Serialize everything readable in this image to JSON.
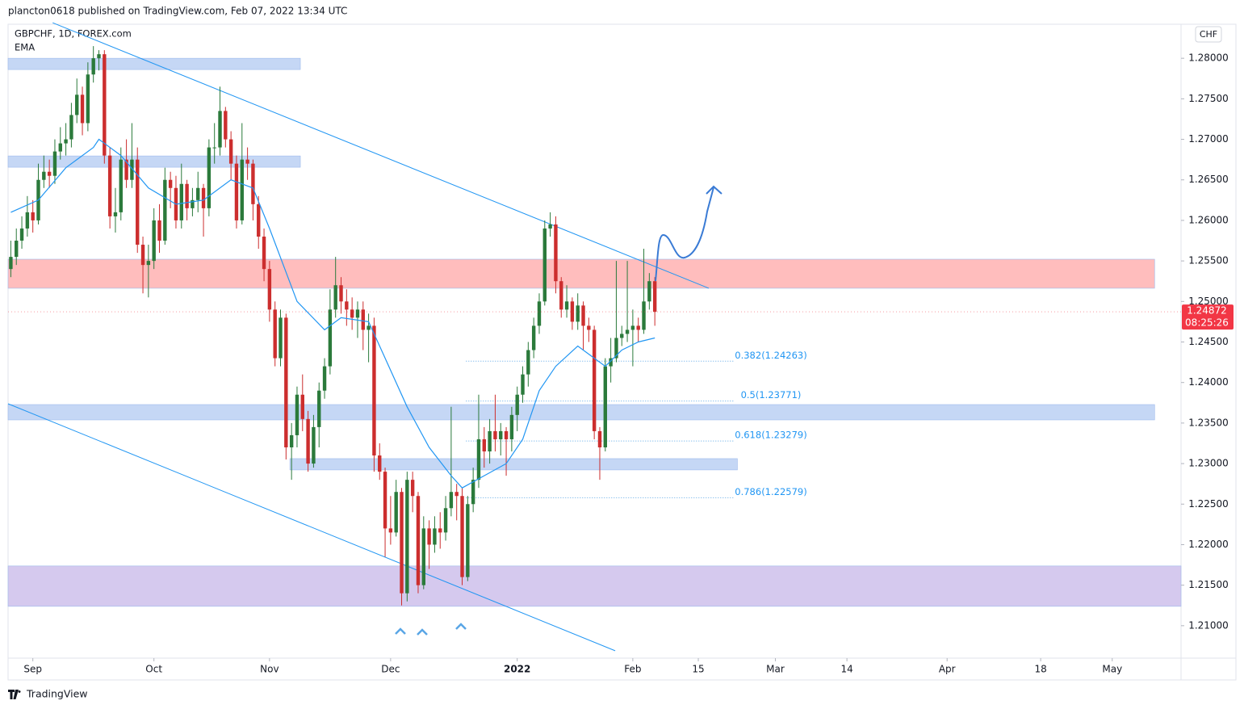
{
  "header": {
    "byline": "plancton0618 published on TradingView.com, Feb 07, 2022 13:34 UTC",
    "symbol": "GBPCHF, 1D, FOREX.com",
    "indicator": "EMA",
    "currency": "CHF",
    "brand": "TradingView"
  },
  "chart_data": {
    "type": "candlestick",
    "up_color": "#2b7a3b",
    "down_color": "#cc2e2e",
    "ema_color": "#2196f3",
    "xlim": [
      -0.5,
      212.6
    ],
    "ylim": [
      1.206,
      1.2842
    ],
    "xticks": [
      {
        "value": 4,
        "label": "Sep"
      },
      {
        "value": 26,
        "label": "Oct"
      },
      {
        "value": 47,
        "label": "Nov"
      },
      {
        "value": 69,
        "label": "Dec"
      },
      {
        "value": 92,
        "label": "2022"
      },
      {
        "value": 113,
        "label": "Feb"
      },
      {
        "value": 124.9,
        "label": "15"
      },
      {
        "value": 138.9,
        "label": "Mar"
      },
      {
        "value": 151.9,
        "label": "14"
      },
      {
        "value": 170.1,
        "label": "Apr"
      },
      {
        "value": 187.1,
        "label": "18"
      },
      {
        "value": 200.1,
        "label": "May"
      }
    ],
    "yticks": [
      {
        "value": 1.21,
        "label": "1.21000"
      },
      {
        "value": 1.215,
        "label": "1.21500"
      },
      {
        "value": 1.22,
        "label": "1.22000"
      },
      {
        "value": 1.225,
        "label": "1.22500"
      },
      {
        "value": 1.23,
        "label": "1.23000"
      },
      {
        "value": 1.235,
        "label": "1.23500"
      },
      {
        "value": 1.24,
        "label": "1.24000"
      },
      {
        "value": 1.245,
        "label": "1.24500"
      },
      {
        "value": 1.25,
        "label": "1.25000"
      },
      {
        "value": 1.255,
        "label": "1.25500"
      },
      {
        "value": 1.26,
        "label": "1.26000"
      },
      {
        "value": 1.265,
        "label": "1.26500"
      },
      {
        "value": 1.27,
        "label": "1.27000"
      },
      {
        "value": 1.275,
        "label": "1.27500"
      },
      {
        "value": 1.28,
        "label": "1.28000"
      }
    ],
    "ohlc": [
      [
        1.254,
        1.2575,
        1.253,
        1.2555
      ],
      [
        1.2555,
        1.259,
        1.2545,
        1.2575
      ],
      [
        1.2575,
        1.2605,
        1.2565,
        1.259
      ],
      [
        1.259,
        1.263,
        1.258,
        1.261
      ],
      [
        1.261,
        1.2625,
        1.2585,
        1.26
      ],
      [
        1.26,
        1.267,
        1.2595,
        1.265
      ],
      [
        1.265,
        1.268,
        1.264,
        1.266
      ],
      [
        1.266,
        1.2675,
        1.264,
        1.2655
      ],
      [
        1.2655,
        1.27,
        1.2645,
        1.2685
      ],
      [
        1.2685,
        1.2715,
        1.2675,
        1.2695
      ],
      [
        1.2695,
        1.272,
        1.268,
        1.27
      ],
      [
        1.27,
        1.2745,
        1.269,
        1.273
      ],
      [
        1.273,
        1.2775,
        1.272,
        1.2755
      ],
      [
        1.2755,
        1.2765,
        1.2705,
        1.272
      ],
      [
        1.272,
        1.2795,
        1.271,
        1.278
      ],
      [
        1.278,
        1.2815,
        1.277,
        1.28
      ],
      [
        1.28,
        1.281,
        1.2785,
        1.2805
      ],
      [
        1.2805,
        1.281,
        1.267,
        1.268
      ],
      [
        1.268,
        1.269,
        1.259,
        1.2605
      ],
      [
        1.2605,
        1.264,
        1.2585,
        1.261
      ],
      [
        1.261,
        1.269,
        1.26,
        1.2675
      ],
      [
        1.2675,
        1.27,
        1.264,
        1.265
      ],
      [
        1.265,
        1.272,
        1.264,
        1.2675
      ],
      [
        1.2675,
        1.269,
        1.256,
        1.257
      ],
      [
        1.257,
        1.258,
        1.251,
        1.2545
      ],
      [
        1.2545,
        1.257,
        1.2505,
        1.255
      ],
      [
        1.255,
        1.2615,
        1.254,
        1.26
      ],
      [
        1.26,
        1.262,
        1.256,
        1.2575
      ],
      [
        1.2575,
        1.2665,
        1.257,
        1.265
      ],
      [
        1.265,
        1.266,
        1.2615,
        1.264
      ],
      [
        1.264,
        1.2655,
        1.259,
        1.26
      ],
      [
        1.26,
        1.267,
        1.259,
        1.2645
      ],
      [
        1.2645,
        1.265,
        1.26,
        1.2615
      ],
      [
        1.2615,
        1.264,
        1.2605,
        1.2625
      ],
      [
        1.2625,
        1.266,
        1.261,
        1.264
      ],
      [
        1.264,
        1.2645,
        1.258,
        1.2615
      ],
      [
        1.2615,
        1.27,
        1.2605,
        1.269
      ],
      [
        1.269,
        1.272,
        1.267,
        1.269
      ],
      [
        1.269,
        1.2765,
        1.268,
        1.2735
      ],
      [
        1.2735,
        1.274,
        1.269,
        1.27
      ],
      [
        1.27,
        1.271,
        1.265,
        1.267
      ],
      [
        1.267,
        1.268,
        1.259,
        1.26
      ],
      [
        1.26,
        1.272,
        1.2595,
        1.2675
      ],
      [
        1.2675,
        1.269,
        1.265,
        1.267
      ],
      [
        1.267,
        1.2675,
        1.26,
        1.262
      ],
      [
        1.262,
        1.263,
        1.2565,
        1.258
      ],
      [
        1.258,
        1.259,
        1.2525,
        1.254
      ],
      [
        1.254,
        1.255,
        1.2475,
        1.249
      ],
      [
        1.249,
        1.25,
        1.242,
        1.243
      ],
      [
        1.243,
        1.249,
        1.242,
        1.248
      ],
      [
        1.248,
        1.2485,
        1.2305,
        1.232
      ],
      [
        1.232,
        1.235,
        1.228,
        1.2335
      ],
      [
        1.2335,
        1.2395,
        1.232,
        1.2385
      ],
      [
        1.2385,
        1.241,
        1.234,
        1.2355
      ],
      [
        1.2355,
        1.2365,
        1.229,
        1.23
      ],
      [
        1.23,
        1.236,
        1.2295,
        1.2345
      ],
      [
        1.2345,
        1.24,
        1.232,
        1.239
      ],
      [
        1.239,
        1.243,
        1.238,
        1.242
      ],
      [
        1.242,
        1.2515,
        1.241,
        1.249
      ],
      [
        1.249,
        1.2555,
        1.248,
        1.252
      ],
      [
        1.252,
        1.253,
        1.2485,
        1.25
      ],
      [
        1.25,
        1.2515,
        1.247,
        1.249
      ],
      [
        1.249,
        1.2505,
        1.2465,
        1.248
      ],
      [
        1.248,
        1.25,
        1.2455,
        1.249
      ],
      [
        1.249,
        1.25,
        1.244,
        1.2465
      ],
      [
        1.2465,
        1.2485,
        1.2425,
        1.247
      ],
      [
        1.247,
        1.248,
        1.229,
        1.231
      ],
      [
        1.231,
        1.2325,
        1.228,
        1.229
      ],
      [
        1.229,
        1.2295,
        1.2185,
        1.222
      ],
      [
        1.222,
        1.226,
        1.22,
        1.2215
      ],
      [
        1.2215,
        1.228,
        1.221,
        1.2265
      ],
      [
        1.2265,
        1.227,
        1.2125,
        1.214
      ],
      [
        1.214,
        1.229,
        1.213,
        1.228
      ],
      [
        1.228,
        1.229,
        1.224,
        1.226
      ],
      [
        1.226,
        1.2265,
        1.214,
        1.215
      ],
      [
        1.215,
        1.2235,
        1.2145,
        1.222
      ],
      [
        1.222,
        1.223,
        1.217,
        1.22
      ],
      [
        1.22,
        1.2235,
        1.219,
        1.222
      ],
      [
        1.222,
        1.224,
        1.2195,
        1.2215
      ],
      [
        1.2215,
        1.226,
        1.2205,
        1.2245
      ],
      [
        1.2245,
        1.237,
        1.2235,
        1.2265
      ],
      [
        1.2265,
        1.2275,
        1.223,
        1.226
      ],
      [
        1.226,
        1.227,
        1.215,
        1.216
      ],
      [
        1.216,
        1.226,
        1.2155,
        1.225
      ],
      [
        1.225,
        1.2295,
        1.224,
        1.228
      ],
      [
        1.228,
        1.2385,
        1.227,
        1.233
      ],
      [
        1.233,
        1.2345,
        1.2295,
        1.2315
      ],
      [
        1.2315,
        1.2355,
        1.23,
        1.234
      ],
      [
        1.234,
        1.2385,
        1.2315,
        1.233
      ],
      [
        1.233,
        1.235,
        1.231,
        1.234
      ],
      [
        1.234,
        1.2345,
        1.2285,
        1.233
      ],
      [
        1.233,
        1.237,
        1.2315,
        1.236
      ],
      [
        1.236,
        1.2395,
        1.234,
        1.2385
      ],
      [
        1.2385,
        1.242,
        1.2375,
        1.241
      ],
      [
        1.241,
        1.245,
        1.2395,
        1.244
      ],
      [
        1.244,
        1.248,
        1.243,
        1.247
      ],
      [
        1.247,
        1.251,
        1.246,
        1.25
      ],
      [
        1.25,
        1.26,
        1.2495,
        1.259
      ],
      [
        1.259,
        1.261,
        1.258,
        1.2595
      ],
      [
        1.2595,
        1.2605,
        1.251,
        1.2525
      ],
      [
        1.2525,
        1.253,
        1.248,
        1.249
      ],
      [
        1.249,
        1.252,
        1.248,
        1.25
      ],
      [
        1.25,
        1.2505,
        1.2465,
        1.2475
      ],
      [
        1.2475,
        1.251,
        1.2465,
        1.2495
      ],
      [
        1.2495,
        1.25,
        1.244,
        1.247
      ],
      [
        1.247,
        1.248,
        1.245,
        1.2465
      ],
      [
        1.2465,
        1.247,
        1.233,
        1.234
      ],
      [
        1.234,
        1.2345,
        1.228,
        1.232
      ],
      [
        1.232,
        1.243,
        1.2315,
        1.242
      ],
      [
        1.242,
        1.2455,
        1.24,
        1.243
      ],
      [
        1.243,
        1.255,
        1.2425,
        1.2455
      ],
      [
        1.2455,
        1.247,
        1.2445,
        1.246
      ],
      [
        1.246,
        1.255,
        1.245,
        1.2465
      ],
      [
        1.2465,
        1.249,
        1.242,
        1.247
      ],
      [
        1.247,
        1.248,
        1.245,
        1.2465
      ],
      [
        1.2465,
        1.2565,
        1.246,
        1.25
      ],
      [
        1.25,
        1.2535,
        1.249,
        1.2525
      ],
      [
        1.2525,
        1.253,
        1.247,
        1.24872
      ]
    ],
    "ema": {
      "x": [
        0,
        5,
        10,
        15,
        16,
        20,
        25,
        30,
        35,
        40,
        44,
        47,
        52,
        57,
        60,
        65,
        68,
        72,
        76,
        80,
        82,
        86,
        90,
        93,
        96,
        99,
        103,
        106,
        108,
        111,
        114,
        117
      ],
      "values": [
        1.261,
        1.2625,
        1.2665,
        1.269,
        1.27,
        1.268,
        1.264,
        1.262,
        1.2625,
        1.265,
        1.264,
        1.259,
        1.25,
        1.2465,
        1.248,
        1.2475,
        1.243,
        1.237,
        1.232,
        1.2285,
        1.227,
        1.2285,
        1.23,
        1.233,
        1.239,
        1.242,
        1.2445,
        1.243,
        1.242,
        1.244,
        1.245,
        1.2455
      ]
    },
    "zones": [
      {
        "low": 1.27861,
        "high": 1.28,
        "from": -0.5,
        "to": 52.6,
        "color": "#c5d7f5"
      },
      {
        "low": 1.26656,
        "high": 1.26795,
        "from": -0.5,
        "to": 52.6,
        "color": "#c5d7f5"
      },
      {
        "low": 1.25163,
        "high": 1.25521,
        "from": -0.5,
        "to": 207.8,
        "color": "#ffbdbd"
      },
      {
        "low": 1.23539,
        "high": 1.23728,
        "from": -0.5,
        "to": 207.8,
        "color": "#c5d7f5"
      },
      {
        "low": 1.22922,
        "high": 1.23061,
        "from": 50.7,
        "to": 132,
        "color": "#c5d7f5"
      },
      {
        "low": 1.21239,
        "high": 1.21737,
        "from": -0.5,
        "to": 212.6,
        "color": "#d5c9ee"
      }
    ],
    "trendlines": [
      {
        "x1": 7.6,
        "y1": 1.28438,
        "x2": 126.8,
        "y2": 1.25163
      },
      {
        "x1": -0.5,
        "y1": 1.23738,
        "x2": 109.8,
        "y2": 1.20691
      }
    ],
    "fib_levels": [
      {
        "value": 1.24263,
        "label": "0.382(1.24263)"
      },
      {
        "value": 1.23771,
        "label": "0.5(1.23771)"
      },
      {
        "value": 1.23279,
        "label": "0.618(1.23279)"
      },
      {
        "value": 1.22579,
        "label": "0.786(1.22579)"
      }
    ],
    "fib_from": 82.7,
    "fib_to": 131.5,
    "last_price": {
      "value": 1.24872,
      "countdown": "08:25:26",
      "color": "#f23645"
    }
  }
}
